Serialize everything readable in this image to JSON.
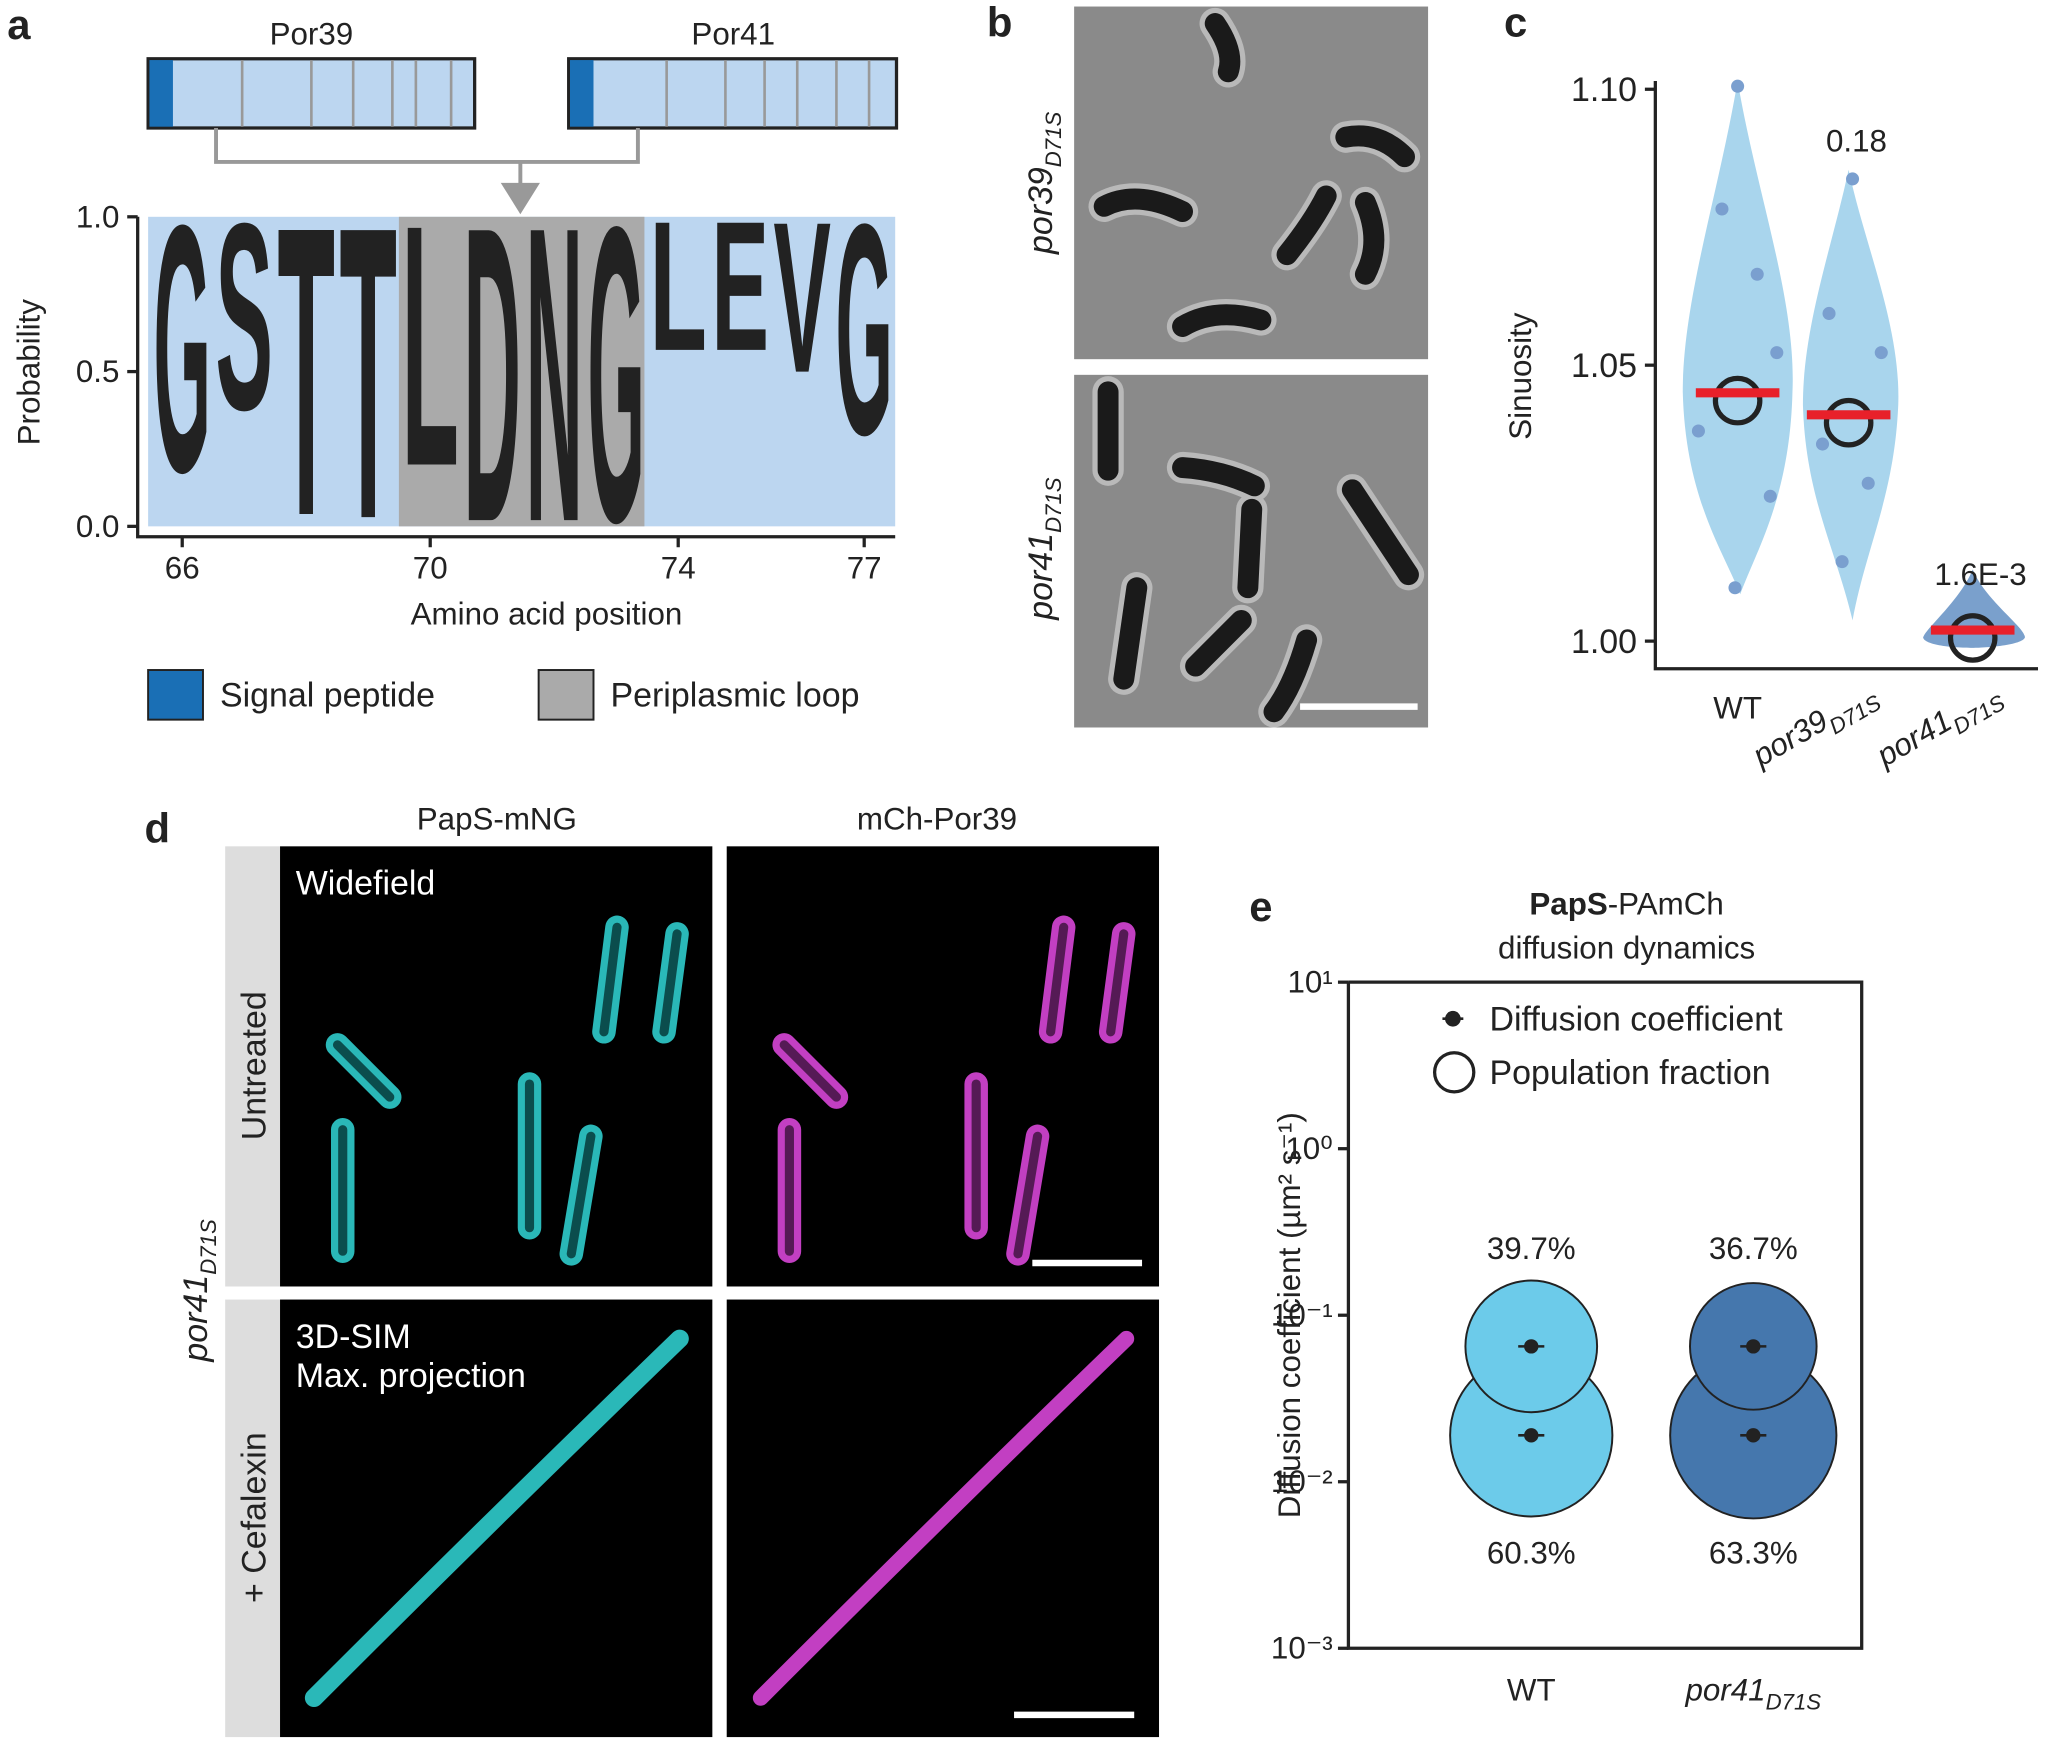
{
  "panel_a": {
    "label": "a",
    "proteins": [
      "Por39",
      "Por41"
    ],
    "ylabel": "Probability",
    "ylim": [
      0,
      1
    ],
    "yticks": [
      {
        "value": 0,
        "label": "0.0"
      },
      {
        "value": 0.5,
        "label": "0.5"
      },
      {
        "value": 1,
        "label": "1.0"
      }
    ],
    "xlabel": "Amino acid position",
    "xlim": [
      65.45,
      77.5
    ],
    "xticks": [
      66,
      70,
      74,
      77
    ],
    "positions": [
      66,
      67,
      68,
      69,
      70,
      71,
      72,
      73,
      74,
      75,
      76,
      77
    ],
    "letters": [
      "G",
      "S",
      "T",
      "T",
      "L",
      "D",
      "N",
      "G",
      "L",
      "E",
      "V",
      "G"
    ],
    "values": [
      0.82,
      0.62,
      0.96,
      0.97,
      0.8,
      0.98,
      0.98,
      0.98,
      0.43,
      0.43,
      0.5,
      0.7
    ],
    "colors": [
      "#111",
      "#111",
      "#111",
      "#111",
      "#111",
      "#d0202e",
      "#111",
      "#111",
      "#111",
      "#111",
      "#111",
      "#111"
    ],
    "legend": [
      "Signal peptide",
      "Periplasmic loop"
    ]
  },
  "panel_b": {
    "label": "b",
    "rows": [
      "por39",
      "por41"
    ],
    "subscript": "D71S"
  },
  "panel_d": {
    "label": "d",
    "columns": [
      "PapS-mNG",
      "mCh-Por39"
    ],
    "rows": [
      "Untreated",
      "+ Cefalexin"
    ],
    "strain": "por41",
    "subscript": "D71S",
    "annotations": [
      "Widefield",
      "3D-SIM",
      "Max. projection"
    ]
  },
  "chart_data": [
    {
      "type": "dot",
      "label": "c",
      "ylabel": "Sinuosity",
      "categories": [
        {
          "name": "WT"
        },
        {
          "name": "por39",
          "subscript": "D71S"
        },
        {
          "name": "por41",
          "subscript": "D71S"
        }
      ],
      "values": [
        1.045,
        1.041,
        1.002
      ],
      "color": "#e8202a",
      "p_values": {
        "por39": "0.18",
        "por41": "1.6E-3"
      },
      "ylim": [
        0.995,
        1.1015
      ],
      "yticks": [
        {
          "value": 1.0,
          "label": "1.00"
        },
        {
          "value": 1.05,
          "label": "1.05"
        },
        {
          "value": 1.1,
          "label": "1.10"
        }
      ]
    },
    {
      "type": "bubble",
      "label": "e",
      "title_bold": "PapS",
      "title": "-PAmCh",
      "subtitle": "diffusion dynamics",
      "ylabel": "Diffusion coefficient (µm² s⁻¹)",
      "log_y": true,
      "ylim": [
        0.001,
        10
      ],
      "yticks": [
        {
          "value": 10,
          "label": "10¹"
        },
        {
          "value": 1,
          "label": "10⁰"
        },
        {
          "value": 0.1,
          "label": "10⁻¹"
        },
        {
          "value": 0.01,
          "label": "10⁻²"
        },
        {
          "value": 0.001,
          "label": "10⁻³"
        }
      ],
      "categories": [
        {
          "name": "WT"
        },
        {
          "name": "por41",
          "subscript": "D71S"
        }
      ],
      "legend": [
        "Diffusion coefficient",
        "Population fraction"
      ],
      "series": [
        {
          "color": "#6ccbea",
          "values": [
            0.065,
            0.019
          ],
          "fractions": [
            39.7,
            60.3
          ],
          "fraction_labels": [
            "39.7%",
            "60.3%"
          ]
        },
        {
          "color": "#4577ad",
          "values": [
            0.065,
            0.019
          ],
          "fractions": [
            36.7,
            63.3
          ],
          "fraction_labels": [
            "36.7%",
            "63.3%"
          ]
        }
      ]
    }
  ]
}
